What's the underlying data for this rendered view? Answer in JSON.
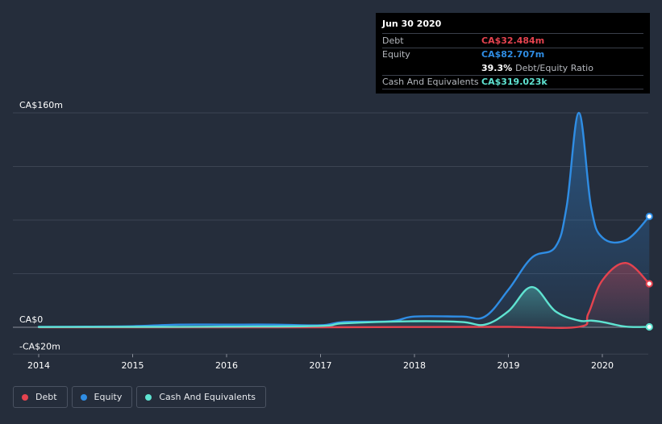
{
  "tooltip": {
    "date": "Jun 30 2020",
    "debt_label": "Debt",
    "debt_value": "CA$32.484m",
    "equity_label": "Equity",
    "equity_value": "CA$82.707m",
    "ratio_value": "39.3%",
    "ratio_label": "Debt/Equity Ratio",
    "cash_label": "Cash And Equivalents",
    "cash_value": "CA$319.023k"
  },
  "legend": [
    {
      "label": "Debt",
      "color": "#e5434f"
    },
    {
      "label": "Equity",
      "color": "#2f8de4"
    },
    {
      "label": "Cash And Equivalents",
      "color": "#5fe3d1"
    }
  ],
  "colors": {
    "background": "#252d3b",
    "debt": "#e5434f",
    "equity": "#2f8de4",
    "cash": "#5fe3d1",
    "grid": "#3c4453"
  },
  "chart_data": {
    "type": "area",
    "y_tick_labels": {
      "160": "CA$160m",
      "0": "CA$0",
      "-20": "-CA$20m"
    },
    "ylim": [
      -20,
      160
    ],
    "xlim": [
      2014,
      2020.5
    ],
    "x_tick_labels": [
      "2014",
      "2015",
      "2016",
      "2017",
      "2018",
      "2019",
      "2020"
    ],
    "x_ticks": [
      2014,
      2015,
      2016,
      2017,
      2018,
      2019,
      2020
    ],
    "grid": true,
    "legend_position": "bottom-left",
    "series": [
      {
        "name": "Equity",
        "x": [
          2014.0,
          2014.5,
          2015.0,
          2015.5,
          2016.0,
          2016.5,
          2017.0,
          2017.25,
          2017.75,
          2018.0,
          2018.5,
          2018.75,
          2019.0,
          2019.25,
          2019.5,
          2019.62,
          2019.75,
          2019.88,
          2020.0,
          2020.25,
          2020.5
        ],
        "y": [
          0.3,
          0.5,
          0.8,
          2.0,
          2.0,
          2.0,
          1.5,
          4.0,
          4.5,
          8.0,
          8.0,
          8.0,
          28.0,
          52.0,
          60.0,
          90.0,
          160.0,
          90.0,
          67.0,
          65.0,
          82.7
        ]
      },
      {
        "name": "Debt",
        "x": [
          2014.0,
          2016.5,
          2017.0,
          2018.0,
          2019.0,
          2019.75,
          2019.85,
          2020.0,
          2020.25,
          2020.5
        ],
        "y": [
          0,
          0,
          0,
          0.2,
          0.3,
          0.3,
          10.0,
          35.0,
          48.0,
          32.5
        ]
      },
      {
        "name": "Cash And Equivalents",
        "x": [
          2014.0,
          2015.0,
          2016.0,
          2017.0,
          2017.25,
          2018.0,
          2018.5,
          2018.75,
          2019.0,
          2019.25,
          2019.5,
          2019.75,
          2019.88,
          2020.0,
          2020.25,
          2020.5
        ],
        "y": [
          0.2,
          0.3,
          0.5,
          1.0,
          3.0,
          4.5,
          4.0,
          2.0,
          12.0,
          30.0,
          12.0,
          5.0,
          5.0,
          4.0,
          0.5,
          0.32
        ]
      }
    ]
  }
}
